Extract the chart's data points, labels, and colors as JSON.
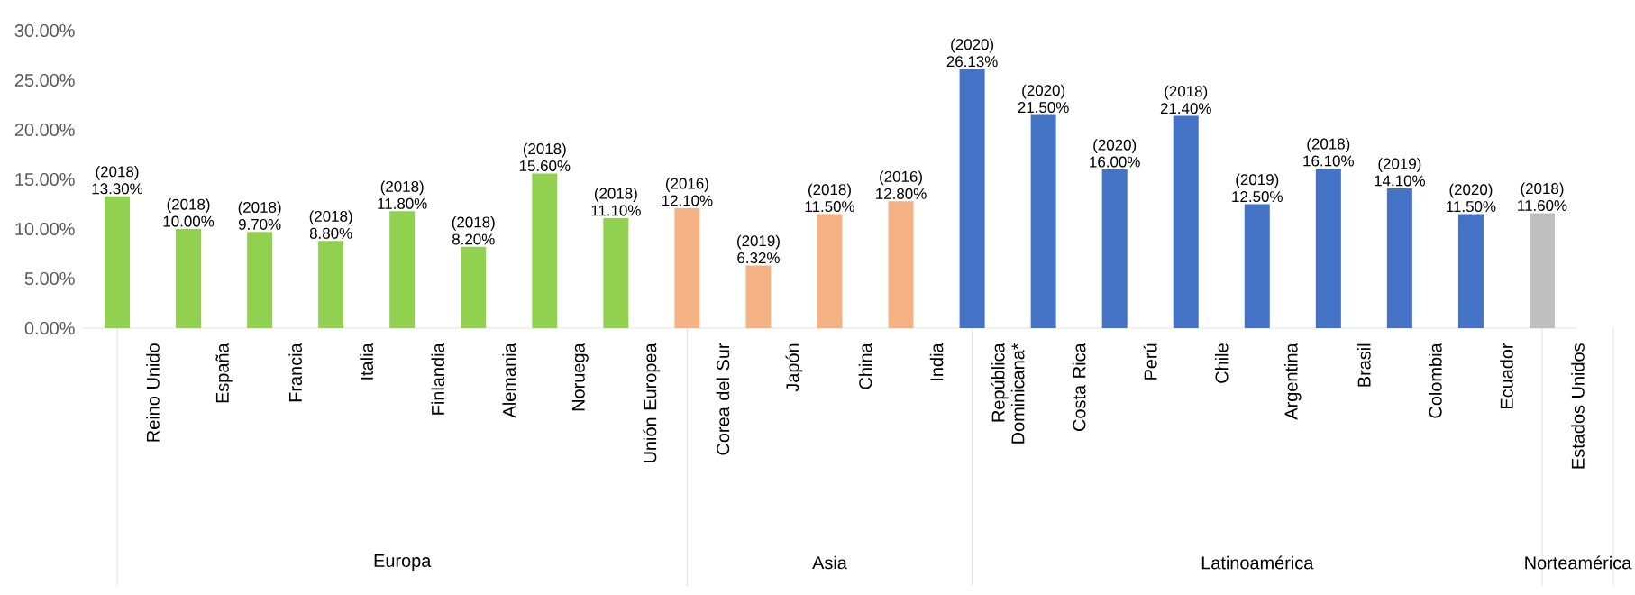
{
  "chart_data": {
    "type": "bar",
    "categories": [
      "Reino Unido",
      "España",
      "Francia",
      "Italia",
      "Finlandia",
      "Alemania",
      "Noruega",
      "Unión Europea",
      "Corea del Sur",
      "Japón",
      "China",
      "India",
      "República Dominicana*",
      "Costa Rica",
      "Perú",
      "Chile",
      "Argentina",
      "Brasil",
      "Colombia",
      "Ecuador",
      "Estados Unidos"
    ],
    "values": [
      13.3,
      10.0,
      9.7,
      8.8,
      11.8,
      8.2,
      15.6,
      11.1,
      12.1,
      6.32,
      11.5,
      12.8,
      26.13,
      21.5,
      16.0,
      21.4,
      12.5,
      16.1,
      14.1,
      11.5,
      11.6
    ],
    "value_labels": [
      "(2018) 13.30%",
      "(2018) 10.00%",
      "(2018) 9.70%",
      "(2018) 8.80%",
      "(2018) 11.80%",
      "(2018) 8.20%",
      "(2018) 15.60%",
      "(2018) 11.10%",
      "(2016) 12.10%",
      "(2019) 6.32%",
      "(2018) 11.50%",
      "(2016) 12.80%",
      "(2020) 26.13%",
      "(2020) 21.50%",
      "(2020) 16.00%",
      "(2018) 21.40%",
      "(2019) 12.50%",
      "(2018) 16.10%",
      "(2019) 14.10%",
      "(2020) 11.50%",
      "(2018) 11.60%"
    ],
    "colors": [
      "#92d050",
      "#92d050",
      "#92d050",
      "#92d050",
      "#92d050",
      "#92d050",
      "#92d050",
      "#92d050",
      "#f4b183",
      "#f4b183",
      "#f4b183",
      "#f4b183",
      "#4472c4",
      "#4472c4",
      "#4472c4",
      "#4472c4",
      "#4472c4",
      "#4472c4",
      "#4472c4",
      "#4472c4",
      "#bfbfbf"
    ],
    "ylim": [
      0,
      30
    ],
    "yticks": [
      {
        "value": 0,
        "label": "0.00%"
      },
      {
        "value": 5,
        "label": "5.00%"
      },
      {
        "value": 10,
        "label": "10.00%"
      },
      {
        "value": 15,
        "label": "15.00%"
      },
      {
        "value": 20,
        "label": "20.00%"
      },
      {
        "value": 25,
        "label": "25.00%"
      },
      {
        "value": 30,
        "label": "30.00%"
      }
    ],
    "annotations": [
      "Europa",
      "Asia",
      "Latinoamérica",
      "Norteamérica"
    ]
  }
}
